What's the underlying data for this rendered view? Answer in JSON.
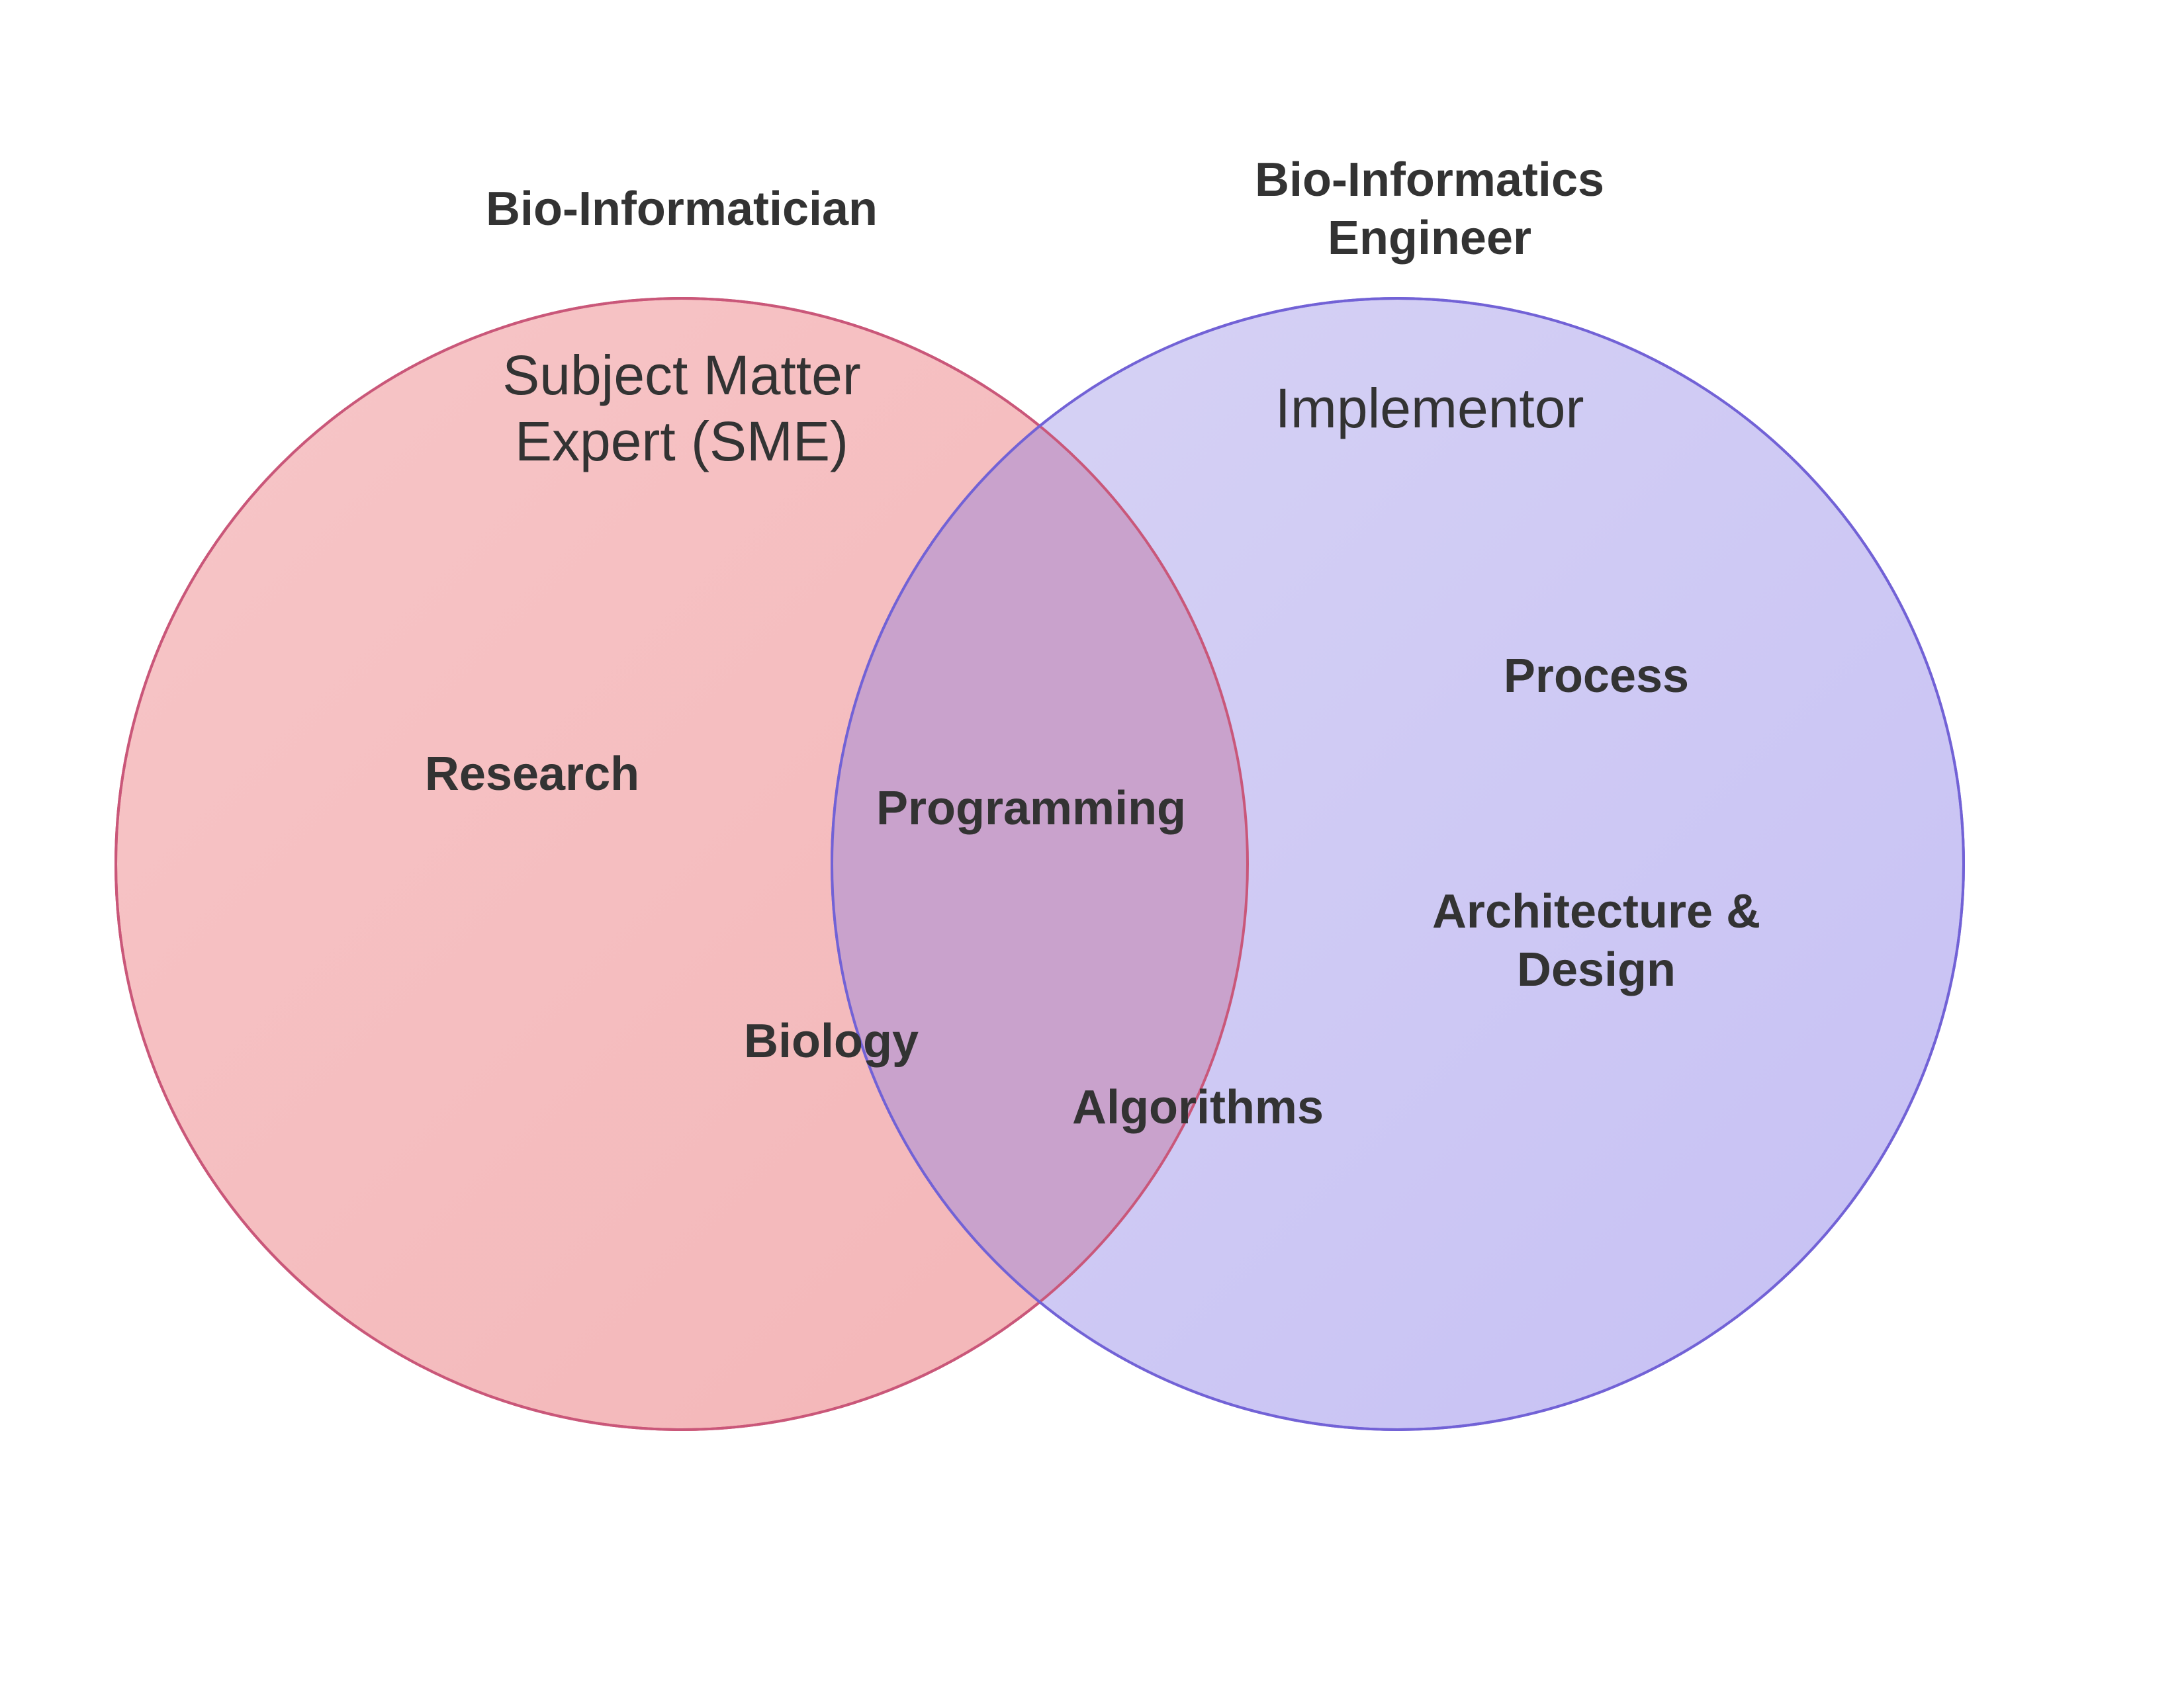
{
  "diagram": {
    "left_circle": {
      "title": "Bio-Informatician",
      "subtitle": "Subject Matter\nExpert (SME)",
      "fill": "#f4b4b8",
      "stroke": "#d94b52"
    },
    "right_circle": {
      "title": "Bio-Informatics\nEngineer",
      "subtitle": "Implementor",
      "fill": "#c8c2f4",
      "stroke": "#7262d6"
    },
    "overlap_fill": "#c9a2cc",
    "items": {
      "research": "Research",
      "biology": "Biology",
      "programming": "Programming",
      "algorithms": "Algorithms",
      "process": "Process",
      "architecture": "Architecture &\nDesign"
    }
  }
}
